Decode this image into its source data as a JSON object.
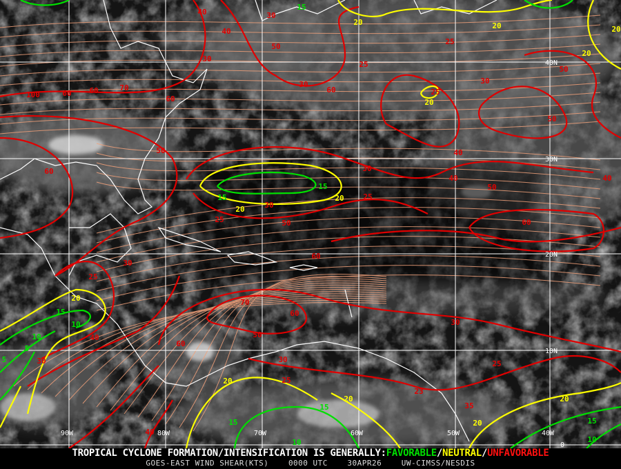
{
  "product": {
    "headline_prefix": "TROPICAL CYCLONE FORMATION/INTENSIFICATION IS GENERALLY:",
    "favorable": "FAVORABLE",
    "neutral": "NEUTRAL",
    "unfavorable": "UNFAVORABLE",
    "separator": "/",
    "source": "GOES-EAST WIND SHEAR(KTS)",
    "time": "0000 UTC",
    "date": "30APR26",
    "credit": "UW-CIMSS/NESDIS"
  },
  "colors": {
    "favorable": "#00e000",
    "neutral": "#ffff00",
    "unfavorable": "#e00000",
    "streamlines": "#f0a07a",
    "grid": "#ffffff",
    "coastline": "#ffffff"
  },
  "grid": {
    "longitudes": [
      "90W",
      "80W",
      "70W",
      "60W",
      "50W",
      "40W"
    ],
    "latitudes": [
      "40N",
      "30N",
      "20N",
      "10N",
      "0"
    ]
  },
  "contour_labels": [
    "40",
    "30",
    "15",
    "20",
    "20",
    "20",
    "20",
    "40",
    "30",
    "50",
    "25",
    "25",
    "30",
    "60",
    "20",
    "25",
    "30",
    "50",
    "100",
    "60",
    "60",
    "70",
    "60",
    "50",
    "40",
    "30",
    "40",
    "50",
    "40",
    "60",
    "50",
    "15",
    "20",
    "15",
    "20",
    "25",
    "30",
    "25",
    "50",
    "60",
    "60",
    "30",
    "25",
    "20",
    "15",
    "10",
    "70",
    "60",
    "30",
    "10",
    "40",
    "50",
    "5",
    "60",
    "30",
    "5",
    "30",
    "25",
    "25",
    "20",
    "20",
    "23",
    "35",
    "20",
    "15",
    "15",
    "20",
    "40",
    "15",
    "10",
    "10"
  ]
}
